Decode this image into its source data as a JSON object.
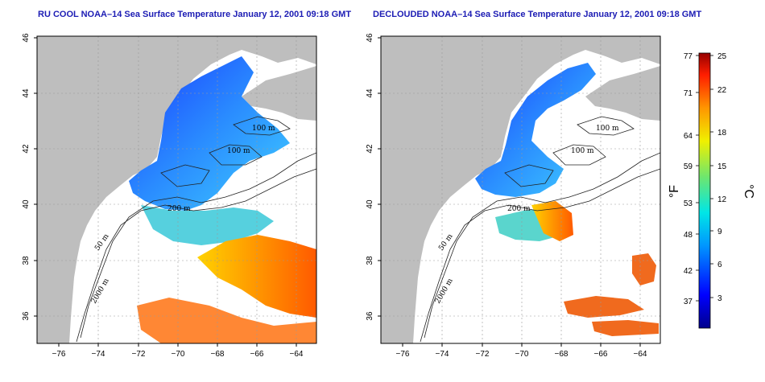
{
  "maps": [
    {
      "title": "RU COOL NOAA–14 Sea Surface Temperature January 12, 2001 09:18 GMT",
      "contour_labels": [
        "100 m",
        "100 m",
        "200 m",
        "50 m",
        "2000 m"
      ]
    },
    {
      "title": "DECLOUDED NOAA–14 Sea Surface Temperature January 12, 2001 09:18 GMT",
      "contour_labels": [
        "100 m",
        "100 m",
        "200 m",
        "50 m",
        "2000 m"
      ]
    }
  ],
  "axes": {
    "x_ticks": [
      "−76",
      "−74",
      "−72",
      "−70",
      "−68",
      "−66",
      "−64"
    ],
    "y_ticks": [
      "46",
      "44",
      "42",
      "40",
      "38",
      "36"
    ]
  },
  "colorbar": {
    "fahrenheit_ticks": [
      "77",
      "71",
      "64",
      "59",
      "53",
      "48",
      "42",
      "37"
    ],
    "celsius_ticks": [
      "25",
      "22",
      "18",
      "15",
      "12",
      "9",
      "6",
      "3"
    ],
    "fahrenheit_label": "°F",
    "celsius_label": "°C"
  },
  "colors": {
    "land": "#bebebe",
    "title": "#1c1cb4",
    "cold": "#1432d2",
    "warm": "#e8501e"
  }
}
